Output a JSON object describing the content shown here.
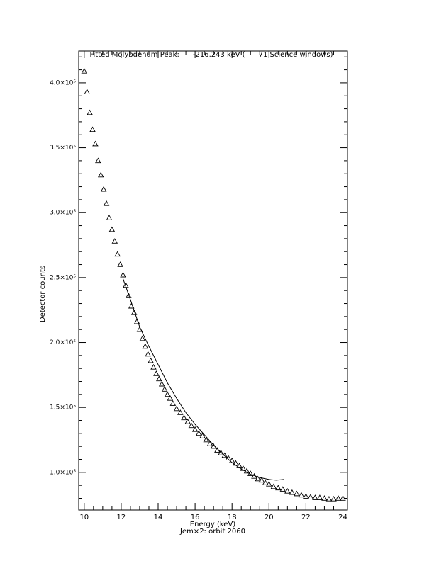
{
  "chart_data": {
    "type": "scatter",
    "title": "Fitted Molybdenum Peak:      -216.243 keV (      71 Science windows)",
    "ylabel": "Detector counts",
    "xlabel": "Energy (keV)",
    "footer": "Jem×2: orbit 2060",
    "xlim": [
      9.7,
      24.25
    ],
    "ylim": [
      71000,
      424500
    ],
    "xticks": [
      10,
      12,
      14,
      16,
      18,
      20,
      22,
      24
    ],
    "yticks": [
      {
        "value": 100000,
        "label": "1.0×10⁵"
      },
      {
        "value": 150000,
        "label": "1.5×10⁵"
      },
      {
        "value": 200000,
        "label": "2.0×10⁵"
      },
      {
        "value": 250000,
        "label": "2.5×10⁵"
      },
      {
        "value": 300000,
        "label": "3.0×10⁵"
      },
      {
        "value": 350000,
        "label": "3.5×10⁵"
      },
      {
        "value": 400000,
        "label": "4.0×10⁵"
      }
    ],
    "xminor": 4,
    "yminor": 5,
    "series": [
      {
        "style": "triangle",
        "color": "#000000",
        "x": [
          10.0,
          10.15,
          10.3,
          10.45,
          10.6,
          10.75,
          10.9,
          11.05,
          11.2,
          11.35,
          11.5,
          11.65,
          11.8,
          11.95,
          12.1,
          12.25,
          12.4,
          12.55,
          12.7,
          12.85,
          13.0,
          13.15,
          13.3,
          13.45,
          13.6,
          13.75,
          13.9,
          14.05,
          14.2,
          14.35,
          14.5,
          14.65,
          14.8,
          15.0,
          15.2,
          15.4,
          15.6,
          15.8,
          16.0,
          16.2,
          16.4,
          16.6,
          16.8,
          17.0,
          17.2,
          17.4,
          17.6,
          17.8,
          18.0,
          18.2,
          18.4,
          18.6,
          18.8,
          19.0,
          19.2,
          19.4,
          19.6,
          19.8,
          20.0,
          20.25,
          20.5,
          20.75,
          21.0,
          21.25,
          21.5,
          21.75,
          22.0,
          22.25,
          22.5,
          22.75,
          23.0,
          23.25,
          23.5,
          23.75,
          24.0
        ],
        "values": [
          409000,
          393000,
          377000,
          364000,
          353000,
          340000,
          329000,
          318000,
          307000,
          296000,
          287000,
          278000,
          268000,
          260000,
          252000,
          244000,
          236000,
          228000,
          223000,
          216000,
          210000,
          203000,
          197000,
          191000,
          186000,
          181000,
          176000,
          172000,
          168000,
          164000,
          160000,
          157000,
          153000,
          149000,
          146000,
          142000,
          139000,
          136000,
          133000,
          130000,
          128000,
          125000,
          122000,
          120000,
          117000,
          115000,
          113000,
          111000,
          109000,
          107000,
          105000,
          103000,
          101000,
          99000,
          97000,
          95000,
          94000,
          92000,
          91000,
          89000,
          88000,
          87000,
          85500,
          84500,
          83500,
          82500,
          81500,
          81000,
          80500,
          80500,
          80000,
          79500,
          79500,
          80000,
          80000
        ]
      },
      {
        "style": "line",
        "color": "#000000",
        "x": [
          12.1,
          12.5,
          13.0,
          13.5,
          14.0,
          14.5,
          15.0,
          15.5,
          16.0,
          16.5,
          17.0,
          17.5,
          18.0,
          18.5,
          19.0,
          19.5,
          20.0,
          20.4,
          20.8
        ],
        "values": [
          249000,
          233000,
          212000,
          197000,
          183000,
          169000,
          157000,
          146000,
          137000,
          129000,
          121000,
          114000,
          107500,
          102500,
          98500,
          96000,
          94500,
          94000,
          94500
        ]
      }
    ]
  }
}
